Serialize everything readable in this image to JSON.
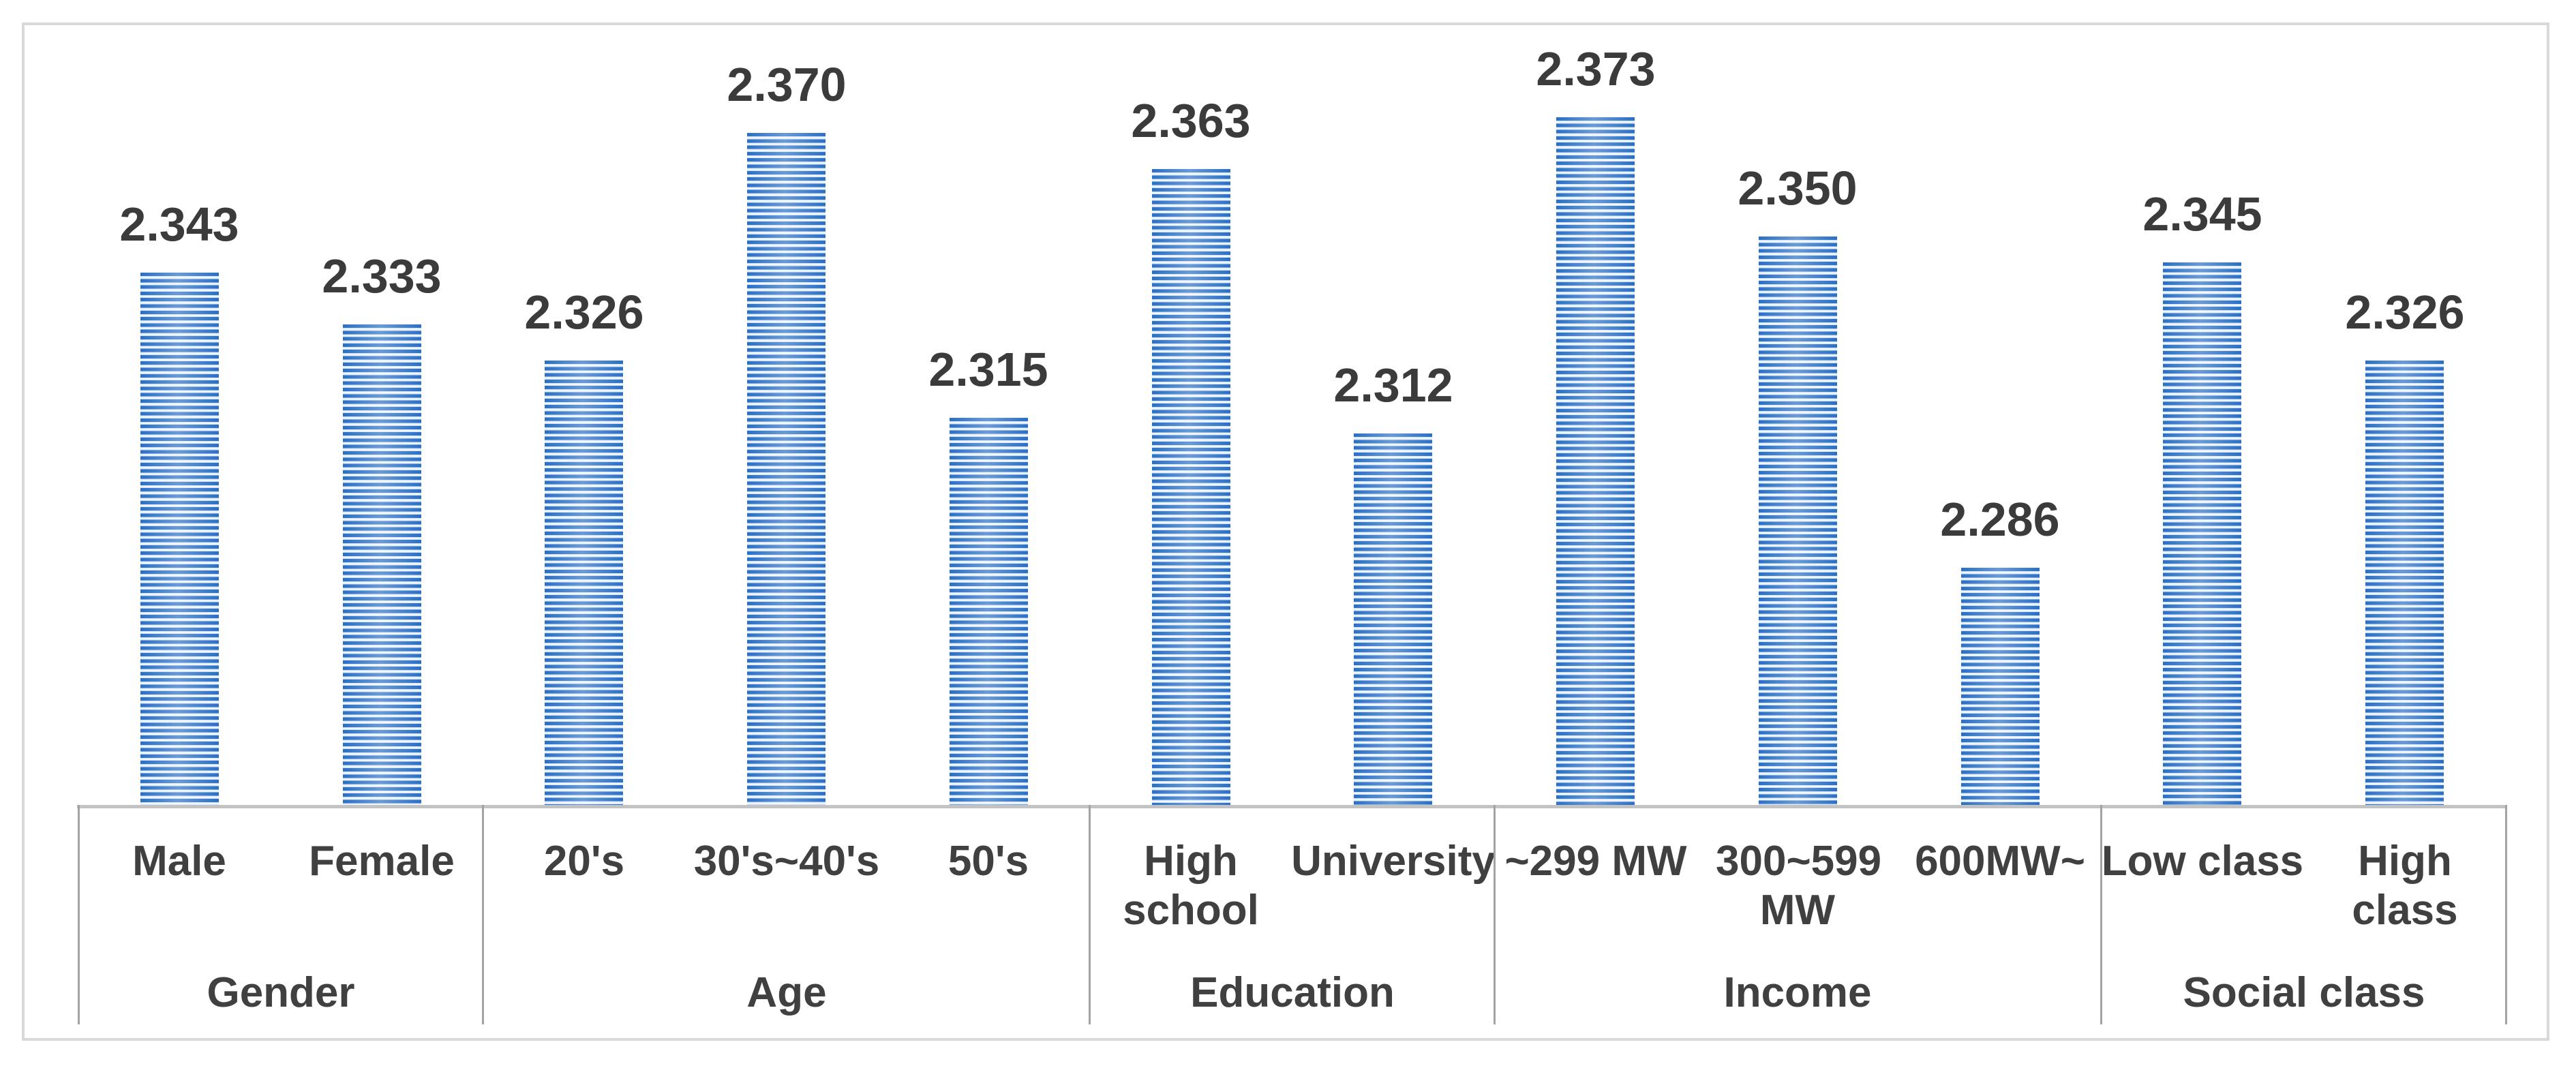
{
  "chart_data": {
    "type": "bar",
    "title": "",
    "groups": [
      {
        "label": "Gender",
        "categories": [
          "Male",
          "Female"
        ],
        "values": [
          2.343,
          2.333
        ]
      },
      {
        "label": "Age",
        "categories": [
          "20's",
          "30's~40's",
          "50's"
        ],
        "values": [
          2.326,
          2.37,
          2.315
        ]
      },
      {
        "label": "Education",
        "categories": [
          "High school",
          "University"
        ],
        "values": [
          2.363,
          2.312
        ]
      },
      {
        "label": "Income",
        "categories": [
          "~299 MW",
          "300~599 MW",
          "600MW~"
        ],
        "values": [
          2.373,
          2.35,
          2.286
        ]
      },
      {
        "label": "Social class",
        "categories": [
          "Low class",
          "High class"
        ],
        "values": [
          2.345,
          2.326
        ]
      }
    ],
    "data_labels": [
      "2.343",
      "2.333",
      "2.326",
      "2.370",
      "2.315",
      "2.363",
      "2.312",
      "2.373",
      "2.350",
      "2.286",
      "2.345",
      "2.326"
    ],
    "value_label_format": "3-decimals",
    "ylim": [
      2.24,
      2.38
    ],
    "grid": "off",
    "legend": "none",
    "value_axis_labels": "hidden",
    "bar_fill_color": "#2a6fc5",
    "bar_pattern": "light-horizontal-stripes",
    "data_label_color": "#3b3b3b",
    "axis_text_color": "#404040",
    "axis_line_color": "#a3a3a3",
    "frame_border_color": "#d9d9d9",
    "background_color": "#ffffff"
  }
}
